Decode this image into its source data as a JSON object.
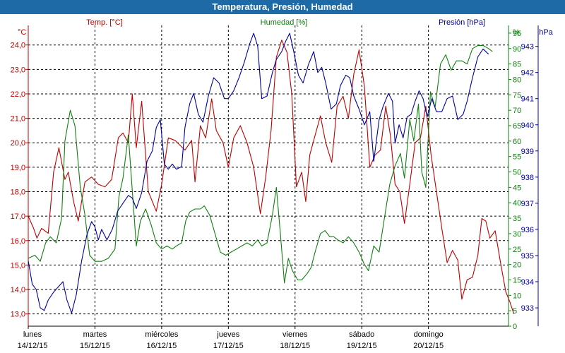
{
  "window": {
    "title": "Temperatura, Presión, Humedad"
  },
  "colors": {
    "temperature": "#c00000",
    "humidity": "#108010",
    "pressure": "#0000a0",
    "titlebar": "#1e6aa6"
  },
  "chart_data": {
    "type": "line",
    "title": "Temperatura, Presión, Humedad",
    "grid": true,
    "x_labels": [
      {
        "day": "lunes",
        "date": "14/12/15"
      },
      {
        "day": "martes",
        "date": "15/12/15"
      },
      {
        "day": "miércoles",
        "date": "16/12/15"
      },
      {
        "day": "jueves",
        "date": "17/12/15"
      },
      {
        "day": "viernes",
        "date": "18/12/15"
      },
      {
        "day": "sábado",
        "date": "19/12/15"
      },
      {
        "day": "domingo",
        "date": "20/12/15"
      }
    ],
    "x_range": [
      0,
      7.2
    ],
    "axes": {
      "temperature": {
        "label": "Temp. [°C]",
        "unit": "°C",
        "range": [
          12.5,
          24.8
        ],
        "ticks": [
          "13,0",
          "14,0",
          "15,0",
          "16,0",
          "17,0",
          "18,0",
          "19,0",
          "20,0",
          "21,0",
          "22,0",
          "23,0",
          "24,0"
        ]
      },
      "humidity": {
        "label": "Humedad [%]",
        "unit": "%",
        "range": [
          0,
          97.5
        ],
        "ticks": [
          "0",
          "5",
          "10",
          "15",
          "20",
          "25",
          "30",
          "35",
          "40",
          "45",
          "50",
          "55",
          "60",
          "65",
          "70",
          "75",
          "80",
          "85",
          "90",
          "95"
        ]
      },
      "pressure": {
        "label": "Presión [hPa]",
        "unit": "hPa",
        "range": [
          932.3,
          943.8
        ],
        "ticks": [
          "933",
          "934",
          "935",
          "936",
          "937",
          "938",
          "939",
          "940",
          "941",
          "942",
          "943"
        ]
      }
    },
    "series": [
      {
        "name": "Temp. [°C]",
        "axis": "temperature",
        "points": [
          [
            0,
            17.0
          ],
          [
            0.08,
            16.5
          ],
          [
            0.13,
            16.1
          ],
          [
            0.2,
            16.5
          ],
          [
            0.3,
            16.3
          ],
          [
            0.38,
            18.8
          ],
          [
            0.46,
            19.8
          ],
          [
            0.55,
            18.5
          ],
          [
            0.6,
            18.8
          ],
          [
            0.68,
            17.6
          ],
          [
            0.75,
            16.8
          ],
          [
            0.85,
            18.4
          ],
          [
            0.95,
            18.6
          ],
          [
            1.05,
            18.3
          ],
          [
            1.15,
            18.2
          ],
          [
            1.25,
            18.5
          ],
          [
            1.35,
            20.2
          ],
          [
            1.42,
            20.4
          ],
          [
            1.5,
            20.0
          ],
          [
            1.56,
            22.0
          ],
          [
            1.62,
            19.8
          ],
          [
            1.7,
            21.7
          ],
          [
            1.8,
            18.0
          ],
          [
            1.92,
            17.2
          ],
          [
            2.0,
            18.3
          ],
          [
            2.1,
            20.2
          ],
          [
            2.2,
            20.1
          ],
          [
            2.35,
            19.7
          ],
          [
            2.45,
            20.1
          ],
          [
            2.5,
            18.4
          ],
          [
            2.58,
            20.7
          ],
          [
            2.66,
            20.2
          ],
          [
            2.75,
            21.8
          ],
          [
            2.82,
            20.5
          ],
          [
            2.92,
            20.0
          ],
          [
            3.0,
            19.0
          ],
          [
            3.08,
            20.2
          ],
          [
            3.18,
            20.7
          ],
          [
            3.28,
            20.0
          ],
          [
            3.38,
            19.0
          ],
          [
            3.48,
            17.1
          ],
          [
            3.56,
            18.6
          ],
          [
            3.64,
            20.5
          ],
          [
            3.72,
            23.5
          ],
          [
            3.8,
            24.2
          ],
          [
            3.88,
            23.7
          ],
          [
            3.95,
            22.0
          ],
          [
            4.02,
            18.2
          ],
          [
            4.1,
            18.8
          ],
          [
            4.16,
            17.6
          ],
          [
            4.22,
            19.5
          ],
          [
            4.3,
            20.3
          ],
          [
            4.38,
            21.1
          ],
          [
            4.46,
            20.0
          ],
          [
            4.55,
            19.2
          ],
          [
            4.63,
            21.5
          ],
          [
            4.72,
            21.9
          ],
          [
            4.8,
            21.0
          ],
          [
            4.88,
            22.8
          ],
          [
            4.96,
            23.8
          ],
          [
            5.04,
            22.3
          ],
          [
            5.12,
            19.0
          ],
          [
            5.2,
            19.5
          ],
          [
            5.28,
            19.7
          ],
          [
            5.36,
            21.5
          ],
          [
            5.43,
            20.3
          ],
          [
            5.5,
            18.3
          ],
          [
            5.57,
            18.0
          ],
          [
            5.64,
            16.7
          ],
          [
            5.72,
            18.3
          ],
          [
            5.8,
            20.0
          ],
          [
            5.88,
            20.2
          ],
          [
            5.96,
            21.5
          ],
          [
            6.04,
            19.5
          ],
          [
            6.12,
            18.0
          ],
          [
            6.2,
            16.5
          ],
          [
            6.28,
            15.1
          ],
          [
            6.36,
            15.6
          ],
          [
            6.44,
            15.2
          ],
          [
            6.5,
            13.6
          ],
          [
            6.58,
            14.4
          ],
          [
            6.66,
            14.5
          ],
          [
            6.74,
            15.4
          ],
          [
            6.8,
            16.9
          ],
          [
            6.86,
            16.8
          ],
          [
            6.92,
            16.1
          ],
          [
            7.0,
            16.4
          ],
          [
            7.08,
            15.1
          ],
          [
            7.16,
            13.9
          ],
          [
            7.22,
            13.5
          ],
          [
            7.28,
            13.0
          ]
        ]
      },
      {
        "name": "Humedad [%]",
        "axis": "humidity",
        "points": [
          [
            0,
            22
          ],
          [
            0.1,
            23
          ],
          [
            0.18,
            21
          ],
          [
            0.26,
            27
          ],
          [
            0.33,
            29
          ],
          [
            0.42,
            27
          ],
          [
            0.5,
            35
          ],
          [
            0.55,
            60
          ],
          [
            0.63,
            70
          ],
          [
            0.7,
            65
          ],
          [
            0.78,
            45
          ],
          [
            0.85,
            36
          ],
          [
            0.92,
            23
          ],
          [
            1.0,
            21
          ],
          [
            1.1,
            21
          ],
          [
            1.2,
            22
          ],
          [
            1.3,
            25
          ],
          [
            1.36,
            42
          ],
          [
            1.42,
            48
          ],
          [
            1.5,
            62
          ],
          [
            1.56,
            44
          ],
          [
            1.62,
            26
          ],
          [
            1.68,
            34
          ],
          [
            1.76,
            38
          ],
          [
            1.84,
            33
          ],
          [
            1.92,
            27
          ],
          [
            2.0,
            25
          ],
          [
            2.08,
            26
          ],
          [
            2.16,
            25
          ],
          [
            2.22,
            26
          ],
          [
            2.3,
            27
          ],
          [
            2.36,
            34
          ],
          [
            2.42,
            37
          ],
          [
            2.5,
            38
          ],
          [
            2.58,
            38
          ],
          [
            2.64,
            39
          ],
          [
            2.72,
            36
          ],
          [
            2.8,
            30
          ],
          [
            2.88,
            24
          ],
          [
            2.96,
            23
          ],
          [
            3.04,
            24
          ],
          [
            3.12,
            25
          ],
          [
            3.2,
            26
          ],
          [
            3.28,
            27
          ],
          [
            3.36,
            26
          ],
          [
            3.44,
            28
          ],
          [
            3.5,
            26
          ],
          [
            3.58,
            27
          ],
          [
            3.66,
            36
          ],
          [
            3.72,
            45
          ],
          [
            3.78,
            30
          ],
          [
            3.84,
            14
          ],
          [
            3.9,
            22
          ],
          [
            3.96,
            18
          ],
          [
            4.04,
            15
          ],
          [
            4.1,
            15
          ],
          [
            4.18,
            17
          ],
          [
            4.24,
            19
          ],
          [
            4.3,
            24
          ],
          [
            4.38,
            30
          ],
          [
            4.45,
            31
          ],
          [
            4.52,
            29
          ],
          [
            4.58,
            29
          ],
          [
            4.64,
            28
          ],
          [
            4.72,
            27
          ],
          [
            4.8,
            29
          ],
          [
            4.88,
            27
          ],
          [
            4.96,
            24
          ],
          [
            5.04,
            20
          ],
          [
            5.1,
            18
          ],
          [
            5.18,
            26
          ],
          [
            5.26,
            24
          ],
          [
            5.34,
            35
          ],
          [
            5.42,
            46
          ],
          [
            5.5,
            52
          ],
          [
            5.58,
            56
          ],
          [
            5.64,
            48
          ],
          [
            5.72,
            67
          ],
          [
            5.78,
            60
          ],
          [
            5.85,
            72
          ],
          [
            5.9,
            50
          ],
          [
            5.96,
            45
          ],
          [
            6.03,
            76
          ],
          [
            6.1,
            71
          ],
          [
            6.18,
            85
          ],
          [
            6.26,
            88
          ],
          [
            6.34,
            83
          ],
          [
            6.42,
            86
          ],
          [
            6.5,
            86
          ],
          [
            6.58,
            85
          ],
          [
            6.66,
            90
          ],
          [
            6.74,
            91
          ],
          [
            6.82,
            91
          ],
          [
            6.9,
            90
          ],
          [
            6.96,
            89
          ]
        ]
      },
      {
        "name": "Presión [hPa]",
        "axis": "pressure",
        "points": [
          [
            0,
            934.8
          ],
          [
            0.06,
            933.9
          ],
          [
            0.12,
            933.7
          ],
          [
            0.18,
            933.0
          ],
          [
            0.24,
            932.9
          ],
          [
            0.3,
            933.3
          ],
          [
            0.38,
            933.6
          ],
          [
            0.45,
            933.8
          ],
          [
            0.52,
            934.0
          ],
          [
            0.58,
            933.3
          ],
          [
            0.65,
            932.8
          ],
          [
            0.72,
            933.5
          ],
          [
            0.8,
            934.8
          ],
          [
            0.88,
            935.8
          ],
          [
            0.95,
            936.3
          ],
          [
            1.0,
            936.1
          ],
          [
            1.05,
            935.6
          ],
          [
            1.1,
            936.0
          ],
          [
            1.18,
            935.6
          ],
          [
            1.26,
            936.0
          ],
          [
            1.34,
            936.7
          ],
          [
            1.42,
            937.0
          ],
          [
            1.5,
            937.3
          ],
          [
            1.56,
            937.2
          ],
          [
            1.62,
            936.8
          ],
          [
            1.7,
            937.4
          ],
          [
            1.78,
            938.6
          ],
          [
            1.86,
            939.0
          ],
          [
            1.92,
            939.9
          ],
          [
            1.98,
            940.2
          ],
          [
            2.04,
            938.5
          ],
          [
            2.1,
            938.3
          ],
          [
            2.16,
            938.5
          ],
          [
            2.22,
            938.3
          ],
          [
            2.3,
            938.4
          ],
          [
            2.35,
            939.9
          ],
          [
            2.42,
            940.8
          ],
          [
            2.48,
            941.2
          ],
          [
            2.55,
            940.4
          ],
          [
            2.62,
            940.1
          ],
          [
            2.7,
            941.1
          ],
          [
            2.78,
            941.8
          ],
          [
            2.86,
            941.6
          ],
          [
            2.94,
            941.0
          ],
          [
            3.0,
            941.0
          ],
          [
            3.08,
            941.3
          ],
          [
            3.16,
            941.8
          ],
          [
            3.24,
            942.4
          ],
          [
            3.32,
            943.1
          ],
          [
            3.38,
            943.5
          ],
          [
            3.44,
            943.0
          ],
          [
            3.5,
            941.0
          ],
          [
            3.58,
            941.1
          ],
          [
            3.66,
            942.0
          ],
          [
            3.72,
            942.5
          ],
          [
            3.8,
            942.8
          ],
          [
            3.86,
            943.2
          ],
          [
            3.92,
            943.5
          ],
          [
            3.98,
            942.8
          ],
          [
            4.05,
            941.9
          ],
          [
            4.12,
            941.6
          ],
          [
            4.2,
            942.3
          ],
          [
            4.28,
            942.8
          ],
          [
            4.34,
            942.0
          ],
          [
            4.4,
            942.2
          ],
          [
            4.46,
            941.6
          ],
          [
            4.54,
            940.6
          ],
          [
            4.62,
            940.8
          ],
          [
            4.68,
            941.5
          ],
          [
            4.76,
            941.9
          ],
          [
            4.82,
            941.8
          ],
          [
            4.88,
            941.1
          ],
          [
            4.96,
            940.6
          ],
          [
            5.04,
            940.0
          ],
          [
            5.12,
            940.5
          ],
          [
            5.18,
            938.6
          ],
          [
            5.26,
            940.2
          ],
          [
            5.32,
            940.7
          ],
          [
            5.4,
            941.2
          ],
          [
            5.46,
            940.9
          ],
          [
            5.5,
            939.3
          ],
          [
            5.56,
            940.0
          ],
          [
            5.62,
            939.5
          ],
          [
            5.68,
            940.3
          ],
          [
            5.74,
            940.4
          ],
          [
            5.8,
            940.9
          ],
          [
            5.86,
            941.3
          ],
          [
            5.92,
            941.0
          ],
          [
            5.98,
            940.3
          ],
          [
            6.05,
            941.0
          ],
          [
            6.12,
            940.5
          ],
          [
            6.2,
            940.5
          ],
          [
            6.28,
            941.0
          ],
          [
            6.36,
            941.1
          ],
          [
            6.44,
            940.2
          ],
          [
            6.52,
            940.4
          ],
          [
            6.58,
            940.9
          ],
          [
            6.66,
            941.8
          ],
          [
            6.74,
            942.6
          ],
          [
            6.82,
            942.9
          ],
          [
            6.9,
            942.7
          ]
        ]
      }
    ]
  }
}
